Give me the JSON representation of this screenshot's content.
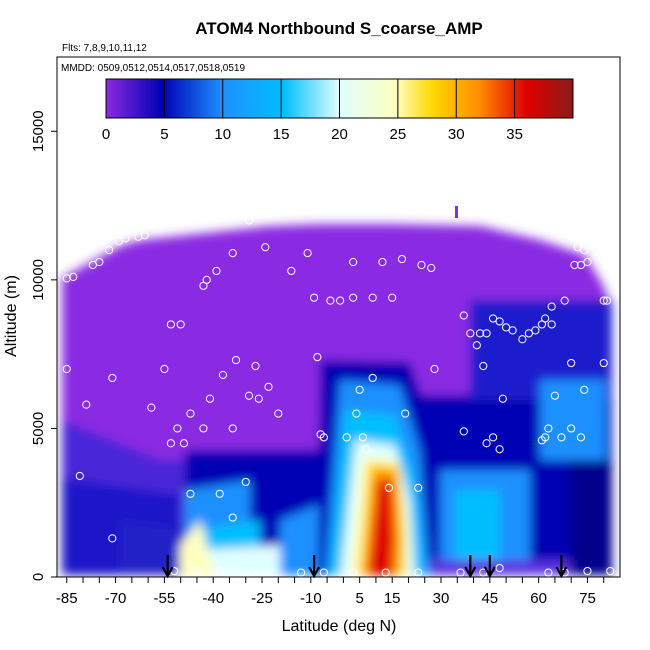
{
  "chart_data": {
    "type": "heatmap",
    "title": "ATOM4 Northbound S_coarse_AMP",
    "flights_note": "Flts: 7,8,9,10,11,12",
    "dates_note": "MMDD: 0509,0512,0514,0517,0518,0519",
    "xlabel": "Latitude (deg N)",
    "ylabel": "Altitude (m)",
    "xlim": [
      -88,
      85
    ],
    "ylim": [
      0,
      17500
    ],
    "x_ticks": [
      -85,
      -70,
      -55,
      -40,
      -25,
      -10,
      5,
      15,
      30,
      45,
      60,
      75
    ],
    "y_ticks": [
      0,
      5000,
      10000,
      15000
    ],
    "colorbar": {
      "min": 0,
      "max": 40,
      "ticks": [
        0,
        5,
        10,
        15,
        20,
        25,
        30,
        35
      ],
      "colors": [
        "#8a2be2",
        "#0000b4",
        "#1e90ff",
        "#00bfff",
        "#e0ffff",
        "#ffffc0",
        "#ffd700",
        "#ff8c00",
        "#e00000",
        "#8b1a1a"
      ]
    },
    "grid": false,
    "arrows_x": [
      -54,
      -9,
      39,
      45,
      67
    ],
    "sample_points": [
      [
        -85,
        10050
      ],
      [
        -83,
        10100
      ],
      [
        -77,
        10500
      ],
      [
        -75,
        10600
      ],
      [
        -72,
        11000
      ],
      [
        -69,
        11300
      ],
      [
        -67,
        11400
      ],
      [
        -63,
        11450
      ],
      [
        -61,
        11500
      ],
      [
        -29,
        12000
      ],
      [
        -39,
        10300
      ],
      [
        -42,
        10000
      ],
      [
        -43,
        9800
      ],
      [
        -34,
        10900
      ],
      [
        -24,
        11100
      ],
      [
        -16,
        10300
      ],
      [
        -11,
        10900
      ],
      [
        -53,
        8500
      ],
      [
        -50,
        8500
      ],
      [
        -33,
        7300
      ],
      [
        -27,
        7100
      ],
      [
        -37,
        6800
      ],
      [
        -23,
        6400
      ],
      [
        -29,
        6100
      ],
      [
        -26,
        6000
      ],
      [
        -55,
        7000
      ],
      [
        -71,
        6700
      ],
      [
        -85,
        7000
      ],
      [
        -79,
        5800
      ],
      [
        -59,
        5700
      ],
      [
        -51,
        5000
      ],
      [
        -47,
        5500
      ],
      [
        -41,
        6000
      ],
      [
        -43,
        5000
      ],
      [
        -53,
        4500
      ],
      [
        -49,
        4500
      ],
      [
        -34,
        5000
      ],
      [
        -20,
        5500
      ],
      [
        -7,
        4800
      ],
      [
        -8,
        7400
      ],
      [
        -6,
        4700
      ],
      [
        -9,
        9400
      ],
      [
        -4,
        9300
      ],
      [
        -1,
        9300
      ],
      [
        3,
        9400
      ],
      [
        9,
        9400
      ],
      [
        15,
        9400
      ],
      [
        3,
        10600
      ],
      [
        12,
        10600
      ],
      [
        18,
        10700
      ],
      [
        24,
        10500
      ],
      [
        27,
        10400
      ],
      [
        37,
        8800
      ],
      [
        28,
        7000
      ],
      [
        39,
        8200
      ],
      [
        42,
        8200
      ],
      [
        41,
        7800
      ],
      [
        44,
        8200
      ],
      [
        46,
        8700
      ],
      [
        48,
        8600
      ],
      [
        50,
        8400
      ],
      [
        52,
        8300
      ],
      [
        55,
        8000
      ],
      [
        57,
        8200
      ],
      [
        59,
        8300
      ],
      [
        61,
        8500
      ],
      [
        62,
        8700
      ],
      [
        64,
        8500
      ],
      [
        64,
        9100
      ],
      [
        68,
        9300
      ],
      [
        71,
        10500
      ],
      [
        73,
        10500
      ],
      [
        75,
        10600
      ],
      [
        72,
        11100
      ],
      [
        74,
        11000
      ],
      [
        80,
        9300
      ],
      [
        81,
        9300
      ],
      [
        80,
        7200
      ],
      [
        74,
        6300
      ],
      [
        70,
        7200
      ],
      [
        70,
        5000
      ],
      [
        73,
        4700
      ],
      [
        61,
        4600
      ],
      [
        62,
        4700
      ],
      [
        63,
        5000
      ],
      [
        67,
        4700
      ],
      [
        65,
        6100
      ],
      [
        46,
        4700
      ],
      [
        44,
        4500
      ],
      [
        48,
        4300
      ],
      [
        43,
        7100
      ],
      [
        49,
        6000
      ],
      [
        37,
        4900
      ],
      [
        9,
        6700
      ],
      [
        5,
        6300
      ],
      [
        4,
        5500
      ],
      [
        19,
        5500
      ],
      [
        6,
        4700
      ],
      [
        1,
        4700
      ],
      [
        7,
        4300
      ],
      [
        14,
        3000
      ],
      [
        23,
        3000
      ],
      [
        -81,
        3400
      ],
      [
        -71,
        1300
      ],
      [
        -47,
        2800
      ],
      [
        -38,
        2800
      ],
      [
        -34,
        2000
      ],
      [
        -30,
        3200
      ],
      [
        -52,
        200
      ],
      [
        -45,
        200
      ],
      [
        -38,
        200
      ],
      [
        -28,
        150
      ],
      [
        -24,
        150
      ],
      [
        -13,
        150
      ],
      [
        -6,
        150
      ],
      [
        3,
        150
      ],
      [
        13,
        150
      ],
      [
        23,
        150
      ],
      [
        36,
        150
      ],
      [
        43,
        150
      ],
      [
        48,
        300
      ],
      [
        63,
        150
      ],
      [
        68,
        150
      ],
      [
        75,
        200
      ],
      [
        82,
        200
      ]
    ]
  }
}
